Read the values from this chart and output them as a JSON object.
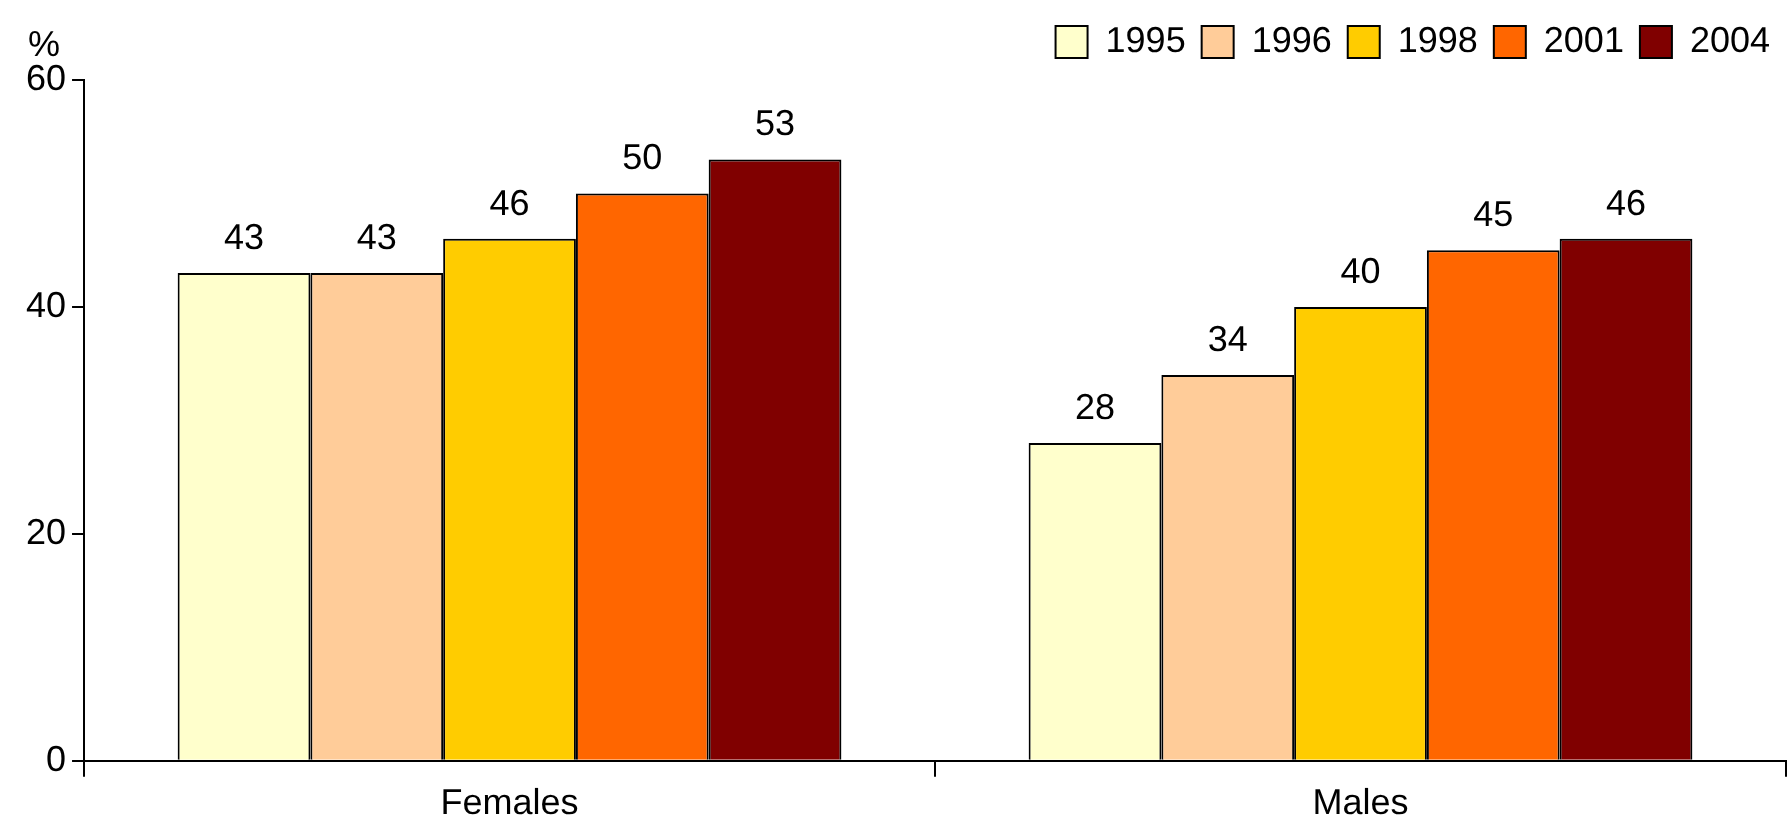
{
  "chart_data": {
    "type": "bar",
    "ylabel": "%",
    "categories": [
      "Females",
      "Males"
    ],
    "series": [
      {
        "name": "1995",
        "color": "#ffffcc",
        "values": [
          43,
          28
        ]
      },
      {
        "name": "1996",
        "color": "#ffcc99",
        "values": [
          43,
          34
        ]
      },
      {
        "name": "1998",
        "color": "#ffcc00",
        "values": [
          46,
          40
        ]
      },
      {
        "name": "2001",
        "color": "#ff6600",
        "values": [
          50,
          45
        ]
      },
      {
        "name": "2004",
        "color": "#800000",
        "values": [
          53,
          46
        ]
      }
    ],
    "ylim": [
      0,
      60
    ],
    "yticks": [
      0,
      20,
      40,
      60
    ],
    "grid": false,
    "legend": "top right",
    "data_labels": true
  }
}
